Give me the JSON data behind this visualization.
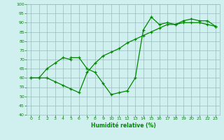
{
  "line1_x": [
    0,
    1,
    2,
    3,
    4,
    5,
    5,
    6,
    7,
    8,
    9,
    10,
    11,
    12,
    13,
    14,
    15,
    16,
    17,
    18,
    19,
    20,
    21,
    22,
    23
  ],
  "line1_y": [
    60,
    60,
    65,
    68,
    71,
    70,
    71,
    71,
    65,
    63,
    57,
    51,
    52,
    53,
    60,
    86,
    93,
    89,
    90,
    89,
    91,
    92,
    91,
    91,
    88
  ],
  "line2_x": [
    0,
    1,
    2,
    3,
    4,
    5,
    6,
    7,
    8,
    9,
    10,
    11,
    12,
    13,
    14,
    15,
    16,
    17,
    18,
    19,
    20,
    21,
    22,
    23
  ],
  "line2_y": [
    60,
    60,
    60,
    58,
    56,
    54,
    52,
    63,
    68,
    72,
    74,
    76,
    79,
    81,
    83,
    85,
    87,
    89,
    89,
    90,
    90,
    90,
    89,
    88
  ],
  "line_color": "#008800",
  "bg_color": "#d0f0f0",
  "grid_color": "#99bbbb",
  "xlabel": "Humidité relative (%)",
  "xlim": [
    -0.5,
    23.5
  ],
  "ylim": [
    40,
    100
  ],
  "yticks": [
    40,
    45,
    50,
    55,
    60,
    65,
    70,
    75,
    80,
    85,
    90,
    95,
    100
  ],
  "xticks": [
    0,
    1,
    2,
    3,
    4,
    5,
    6,
    7,
    8,
    9,
    10,
    11,
    12,
    13,
    14,
    15,
    16,
    17,
    18,
    19,
    20,
    21,
    22,
    23
  ]
}
